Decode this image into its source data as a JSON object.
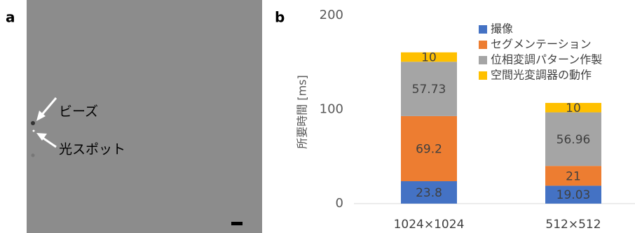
{
  "image_panel": {
    "label": "a",
    "annotations": [
      "ビーズ",
      "光スポット"
    ]
  },
  "chart_data": {
    "type": "bar",
    "stacked": true,
    "label": "b",
    "y_label": "所要時間 [ms]",
    "categories": [
      "1024×1024",
      "512×512"
    ],
    "series": [
      {
        "name": "撮像",
        "color": "#4472c4",
        "values": [
          23.8,
          19.03
        ]
      },
      {
        "name": "セグメンテーション",
        "color": "#ed7d31",
        "values": [
          69.2,
          21
        ]
      },
      {
        "name": "位相変調パターン作製",
        "color": "#a5a5a5",
        "values": [
          57.73,
          56.96
        ]
      },
      {
        "name": "空間光変調器の動作",
        "color": "#ffc000",
        "values": [
          10,
          10
        ]
      }
    ],
    "ylim": [
      0,
      200
    ],
    "yticks": [
      0,
      100,
      200
    ],
    "grid": false
  }
}
